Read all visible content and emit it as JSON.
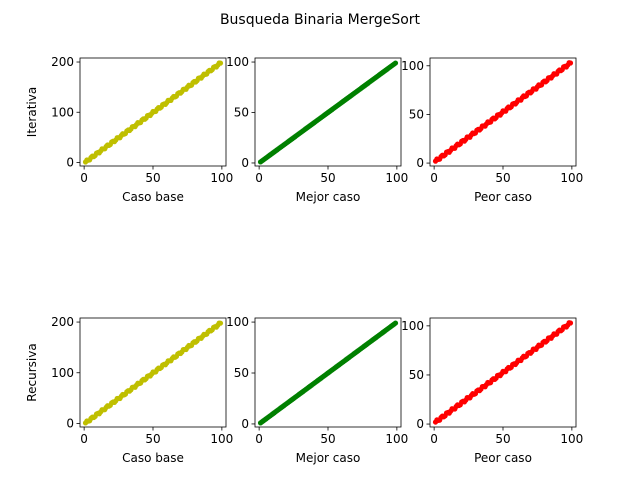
{
  "figure": {
    "title": "Busqueda Binaria MergeSort"
  },
  "chart_data": [
    {
      "type": "scatter",
      "row_label": "Iterativa",
      "xlabel": "Caso base",
      "color": "#bfbf00",
      "xlim": [
        -3,
        103
      ],
      "ylim": [
        -7,
        208
      ],
      "xticks": [
        0,
        50,
        100
      ],
      "yticks": [
        0,
        100,
        200
      ],
      "x_range": [
        1,
        99
      ],
      "y_range": [
        1,
        198
      ],
      "jitter": 2
    },
    {
      "type": "scatter",
      "row_label": "",
      "xlabel": "Mejor caso",
      "color": "#008000",
      "xlim": [
        -3,
        103
      ],
      "ylim": [
        -3,
        104
      ],
      "xticks": [
        0,
        50,
        100
      ],
      "yticks": [
        0,
        50,
        100
      ],
      "x_range": [
        1,
        99
      ],
      "y_range": [
        1,
        99
      ],
      "jitter": 0
    },
    {
      "type": "scatter",
      "row_label": "",
      "xlabel": "Peor caso",
      "color": "#ff0000",
      "xlim": [
        -3,
        103
      ],
      "ylim": [
        -3,
        108
      ],
      "xticks": [
        0,
        50,
        100
      ],
      "yticks": [
        0,
        50,
        100
      ],
      "x_range": [
        1,
        99
      ],
      "y_range": [
        2,
        103
      ],
      "jitter": 1.2
    },
    {
      "type": "scatter",
      "row_label": "Recursiva",
      "xlabel": "Caso base",
      "color": "#bfbf00",
      "xlim": [
        -3,
        103
      ],
      "ylim": [
        -7,
        208
      ],
      "xticks": [
        0,
        50,
        100
      ],
      "yticks": [
        0,
        100,
        200
      ],
      "x_range": [
        1,
        99
      ],
      "y_range": [
        1,
        198
      ],
      "jitter": 2
    },
    {
      "type": "scatter",
      "row_label": "",
      "xlabel": "Mejor caso",
      "color": "#008000",
      "xlim": [
        -3,
        103
      ],
      "ylim": [
        -3,
        104
      ],
      "xticks": [
        0,
        50,
        100
      ],
      "yticks": [
        0,
        50,
        100
      ],
      "x_range": [
        1,
        99
      ],
      "y_range": [
        1,
        99
      ],
      "jitter": 0
    },
    {
      "type": "scatter",
      "row_label": "",
      "xlabel": "Peor caso",
      "color": "#ff0000",
      "xlim": [
        -3,
        103
      ],
      "ylim": [
        -3,
        108
      ],
      "xticks": [
        0,
        50,
        100
      ],
      "yticks": [
        0,
        50,
        100
      ],
      "x_range": [
        1,
        99
      ],
      "y_range": [
        2,
        103
      ],
      "jitter": 1.2
    }
  ]
}
